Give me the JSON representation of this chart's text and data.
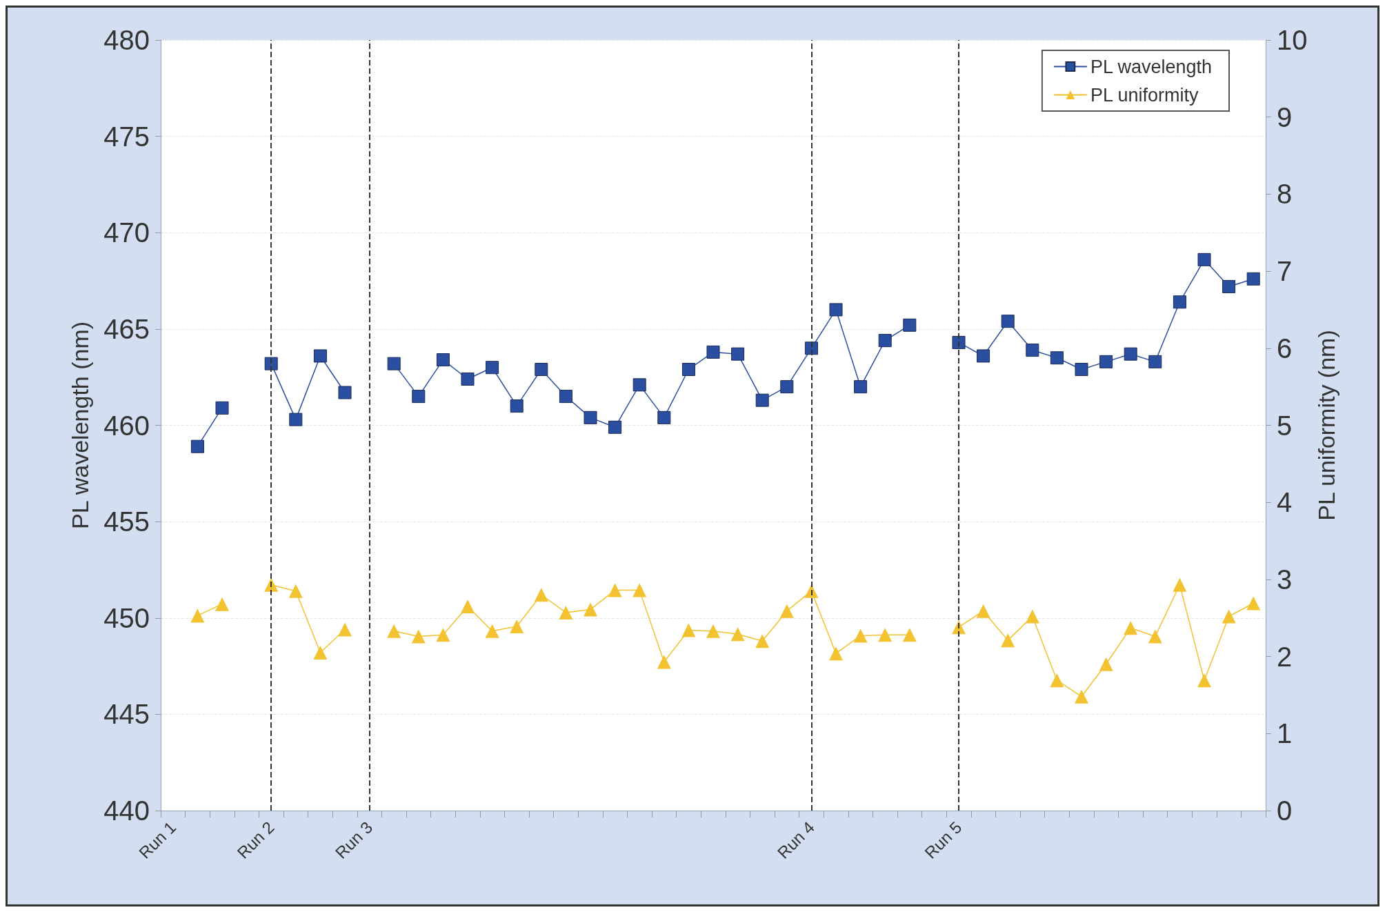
{
  "chart_data": {
    "type": "line",
    "ylabel": "PL wavelength (nm)",
    "y2label": "PL uniformity (nm)",
    "categories": [
      "Run 1",
      null,
      null,
      null,
      "Run 2",
      null,
      null,
      null,
      "Run 3",
      null,
      null,
      null,
      null,
      null,
      null,
      null,
      null,
      null,
      null,
      null,
      null,
      null,
      null,
      null,
      null,
      null,
      "Run 4",
      null,
      null,
      null,
      null,
      null,
      "Run 5",
      null,
      null,
      null,
      null,
      null,
      null,
      null,
      null,
      null,
      null,
      null,
      null
    ],
    "series": [
      {
        "name": "PL wavelength",
        "color": "#2b4fa0",
        "marker": "square",
        "values": [
          null,
          458.9,
          460.9,
          null,
          463.2,
          460.3,
          463.6,
          461.7,
          null,
          463.2,
          461.5,
          463.4,
          462.4,
          463.0,
          461.0,
          462.9,
          461.5,
          460.4,
          459.9,
          462.1,
          460.4,
          462.9,
          463.8,
          463.7,
          461.3,
          462.0,
          464.0,
          466.0,
          462.0,
          464.4,
          465.2,
          null,
          464.3,
          463.6,
          465.4,
          463.9,
          463.5,
          462.9,
          463.3,
          463.7,
          463.3,
          466.4,
          468.6,
          467.2,
          467.6
        ]
      },
      {
        "name": "PL uniformity",
        "color": "#f2c230",
        "marker": "triangle",
        "axis": "y2",
        "values": [
          null,
          2.53,
          2.68,
          null,
          2.93,
          2.85,
          2.05,
          2.35,
          null,
          2.33,
          2.26,
          2.28,
          2.65,
          2.33,
          2.39,
          2.8,
          2.57,
          2.61,
          2.86,
          2.86,
          1.93,
          2.34,
          2.33,
          2.29,
          2.2,
          2.59,
          2.85,
          2.04,
          2.27,
          2.28,
          2.28,
          null,
          2.38,
          2.59,
          2.21,
          2.52,
          1.69,
          1.48,
          1.9,
          2.37,
          2.26,
          2.93,
          1.69,
          2.52,
          2.69
        ]
      }
    ],
    "ylim": [
      440,
      480
    ],
    "yticks": [
      440,
      445,
      450,
      455,
      460,
      465,
      470,
      475,
      480
    ],
    "y2lim": [
      0,
      10
    ],
    "y2ticks": [
      0,
      1,
      2,
      3,
      4,
      5,
      6,
      7,
      8,
      9,
      10
    ],
    "ref_lines": [
      {
        "axis": "x",
        "value": "Run 2",
        "color": "#333333",
        "line_style": "dashed"
      },
      {
        "axis": "x",
        "value": "Run 3",
        "color": "#333333",
        "line_style": "dashed"
      },
      {
        "axis": "x",
        "value": "Run 4",
        "color": "#333333",
        "line_style": "dashed"
      },
      {
        "axis": "x",
        "value": "Run 5",
        "color": "#333333",
        "line_style": "dashed"
      }
    ],
    "grid": "y",
    "legend": "top right",
    "line_style": "solid"
  }
}
